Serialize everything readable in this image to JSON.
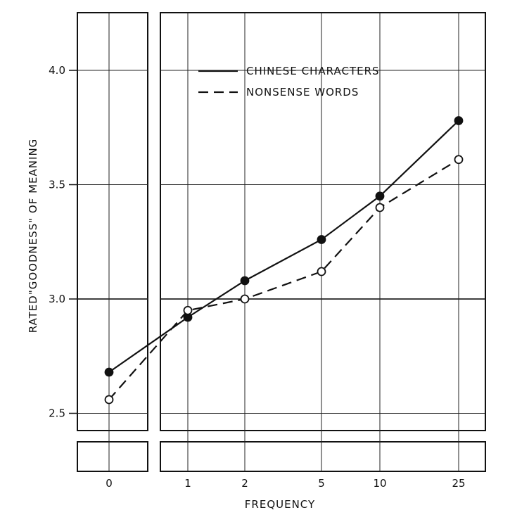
{
  "chart_data": {
    "type": "line",
    "categories": [
      "0",
      "1",
      "2",
      "5",
      "10",
      "25"
    ],
    "series": [
      {
        "name": "CHINESE CHARACTERS",
        "values": [
          2.68,
          2.92,
          3.08,
          3.26,
          3.45,
          3.78
        ],
        "line_style": "solid",
        "marker": "filled-circle"
      },
      {
        "name": "NONSENSE WORDS",
        "values": [
          2.56,
          2.95,
          3.0,
          3.12,
          3.4,
          3.61
        ],
        "line_style": "dashed",
        "marker": "open-circle"
      }
    ],
    "y_ticks": [
      {
        "value": 2.5,
        "label": "2.5"
      },
      {
        "value": 3.0,
        "label": "3.0"
      },
      {
        "value": 3.5,
        "label": "3.5"
      },
      {
        "value": 4.0,
        "label": "4.0"
      }
    ],
    "xlabel": "FREQUENCY",
    "ylabel": "RATED\"GOODNESS\" OF MEANING",
    "ylim": [
      2.5,
      4.0
    ],
    "grid": true,
    "legend_position": "top-right",
    "axis_break": "between 0 and 1"
  }
}
